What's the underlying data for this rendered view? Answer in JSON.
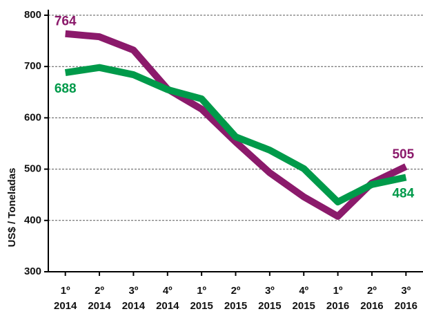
{
  "chart_data": {
    "type": "line",
    "y_label": "US$ / Toneladas",
    "categories": [
      [
        "1º",
        "2014"
      ],
      [
        "2º",
        "2014"
      ],
      [
        "3º",
        "2014"
      ],
      [
        "4º",
        "2014"
      ],
      [
        "1º",
        "2015"
      ],
      [
        "2º",
        "2015"
      ],
      [
        "3º",
        "2015"
      ],
      [
        "4º",
        "2015"
      ],
      [
        "1º",
        "2016"
      ],
      [
        "2º",
        "2016"
      ],
      [
        "3º",
        "2016"
      ]
    ],
    "series": [
      {
        "name": null,
        "color": "#8b1a6b",
        "values": [
          764,
          758,
          732,
          656,
          617,
          553,
          493,
          446,
          408,
          473,
          505
        ]
      },
      {
        "name": null,
        "color": "#009a4a",
        "values": [
          688,
          698,
          684,
          655,
          637,
          563,
          537,
          501,
          436,
          470,
          484
        ]
      }
    ],
    "ylim": [
      300,
      800
    ],
    "yticks": [
      300,
      400,
      500,
      600,
      700,
      800
    ],
    "grid": true
  }
}
